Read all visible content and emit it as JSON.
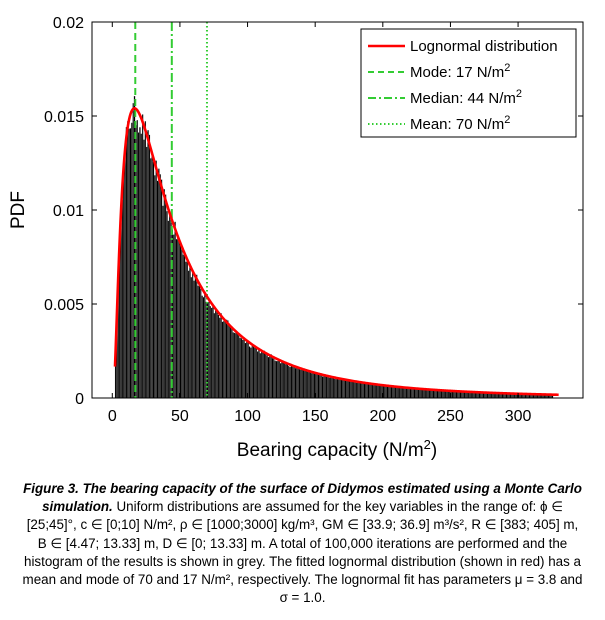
{
  "chart_data": {
    "type": "bar",
    "title": "",
    "xlabel": {
      "main": "Bearing capacity (N/m",
      "sup": "2",
      "tail": ")"
    },
    "ylabel": "PDF",
    "xlim": [
      -15,
      348
    ],
    "ylim": [
      0,
      0.02
    ],
    "xticks": [
      0,
      50,
      100,
      150,
      200,
      250,
      300
    ],
    "yticks": [
      {
        "value": 0,
        "label": "0"
      },
      {
        "value": 0.005,
        "label": "0.005"
      },
      {
        "value": 0.01,
        "label": "0.01"
      },
      {
        "value": 0.015,
        "label": "0.015"
      },
      {
        "value": 0.02,
        "label": "0.02"
      }
    ],
    "grid": false,
    "legend_position": "top-right",
    "histogram": {
      "name": "Histogram of results",
      "color": "#000000",
      "bin_width": 1,
      "bin_start": 2,
      "bin_end": 325,
      "shape": "lognormal",
      "mu": 3.8,
      "sigma": 1.0,
      "peak": 0.0154,
      "mode_at": 17
    },
    "series": [
      {
        "name": "Lognormal distribution",
        "color": "#ff0000",
        "style": "solid",
        "mu": 3.8,
        "sigma": 1.0,
        "peak": 0.0154,
        "mode_at": 17,
        "x_max": 330
      }
    ],
    "markers": [
      {
        "name": "Mode",
        "label": "Mode: 17 N/m",
        "sup": "2",
        "x": 17,
        "color": "#33cc33",
        "style": "dashed"
      },
      {
        "name": "Median",
        "label": "Median: 44 N/m",
        "sup": "2",
        "x": 44,
        "color": "#33cc33",
        "style": "dashdot"
      },
      {
        "name": "Mean",
        "label": "Mean: 70 N/m",
        "sup": "2",
        "x": 70,
        "color": "#33cc33",
        "style": "dotted"
      }
    ]
  },
  "caption": {
    "lead": "Figure 3. The bearing capacity of the surface of Didymos estimated using a Monte Carlo simulation.",
    "body": " Uniform distributions are assumed for the key variables in the range of:  ϕ ∈ [25;45]°, c ∈ [0;10] N/m², ρ ∈ [1000;3000] kg/m³, GM ∈ [33.9; 36.9] m³/s², R ∈ [383; 405] m, B ∈ [4.47; 13.33] m, D ∈ [0; 13.33] m. A total of 100,000 iterations are performed and the histogram of the results is shown in grey. The fitted lognormal distribution (shown in red) has a mean and mode of 70 and 17 N/m², respectively. The lognormal fit has parameters μ = 3.8 and σ = 1.0."
  }
}
